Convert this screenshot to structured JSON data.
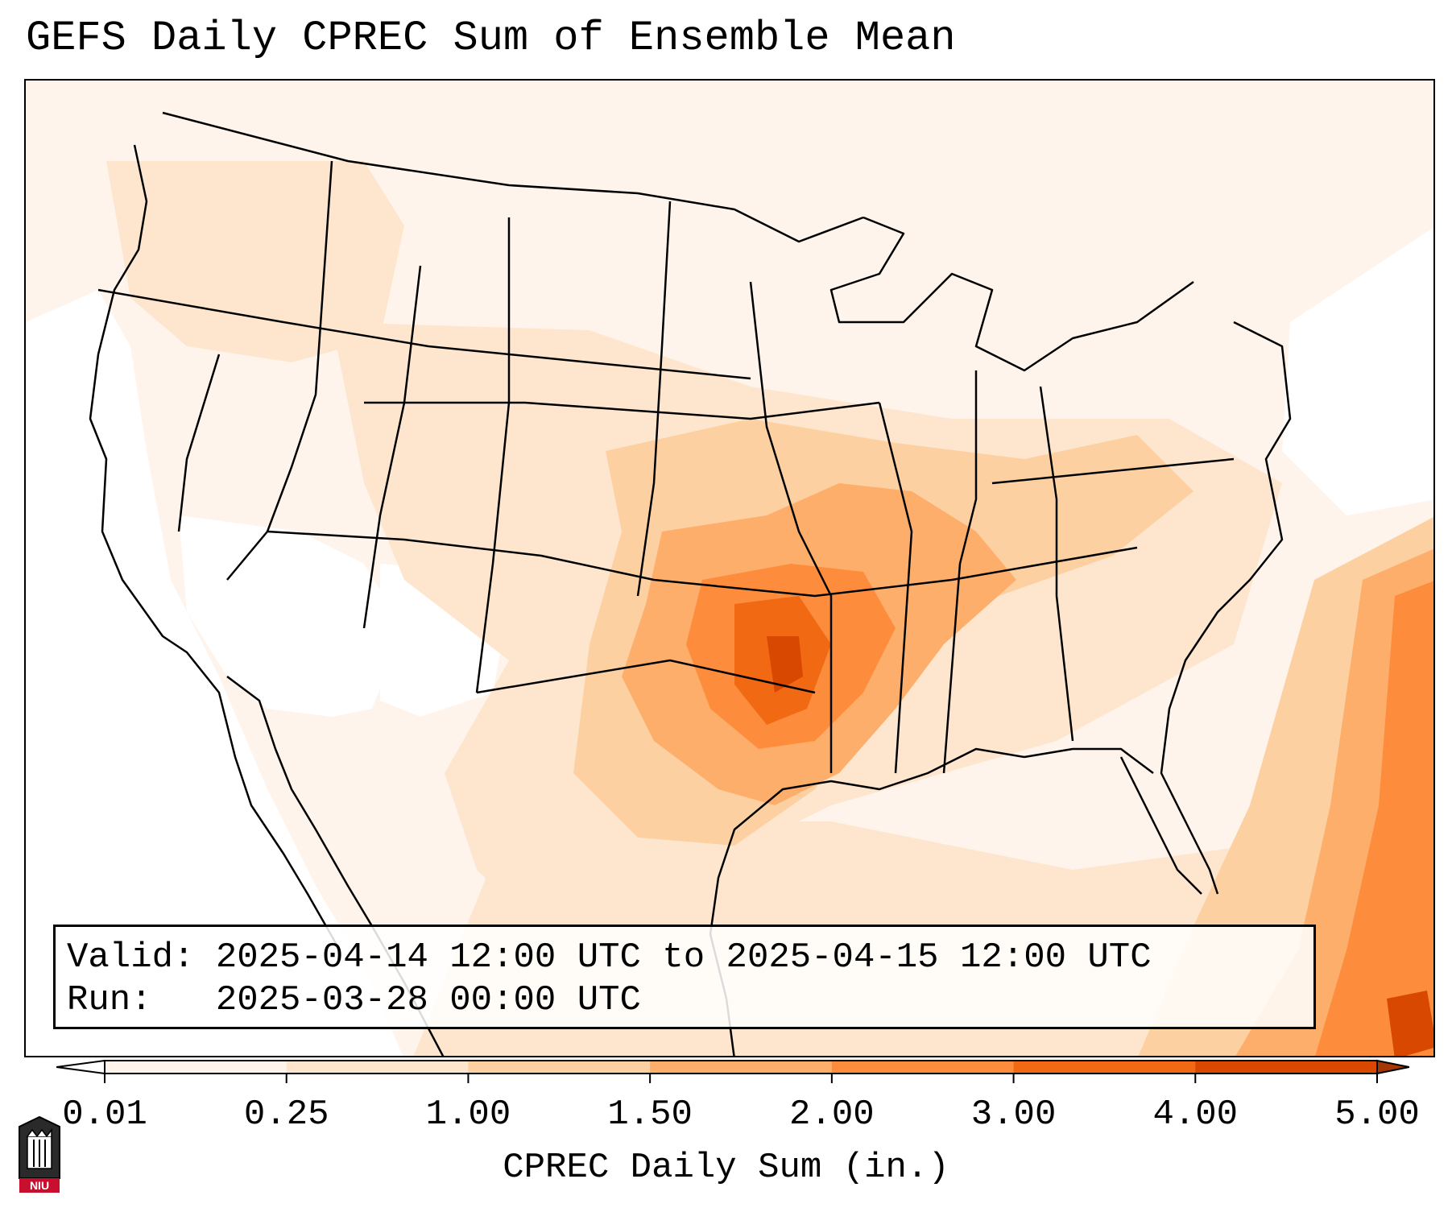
{
  "title": "GEFS Daily CPREC Sum of Ensemble Mean",
  "info": {
    "valid": "Valid: 2025-04-14 12:00 UTC to 2025-04-15 12:00 UTC",
    "run": "Run:   2025-03-28 00:00 UTC"
  },
  "colorbar": {
    "label": "CPREC Daily Sum (in.)",
    "ticks": [
      "0.01",
      "0.25",
      "1.00",
      "1.50",
      "2.00",
      "3.00",
      "4.00",
      "5.00"
    ],
    "colors": [
      "#fff5eb",
      "#fee6ce",
      "#fdd0a2",
      "#fdae6b",
      "#fd8d3c",
      "#f16913",
      "#d94801"
    ],
    "under_color": "#ffffff",
    "over_color": "#a63603"
  },
  "logo": {
    "text": "NIU"
  },
  "colors": {
    "light": "#fee6ce",
    "mid": "#fdd0a2",
    "orange": "#fdae6b",
    "dark": "#fd8d3c",
    "darker": "#f16913",
    "darkest": "#d94801",
    "border": "#000000"
  }
}
